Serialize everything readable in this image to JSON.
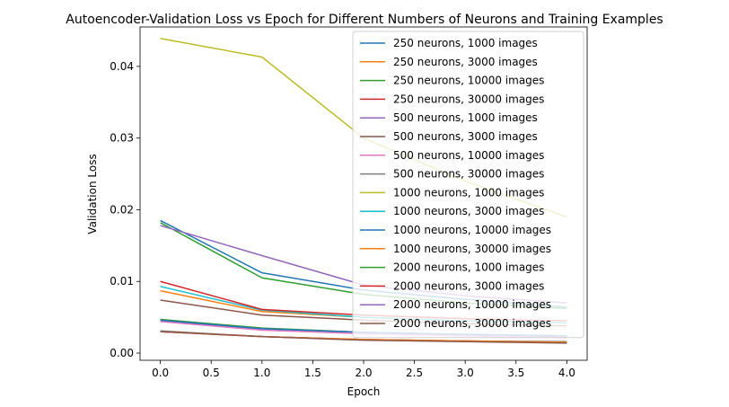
{
  "chart_data": {
    "type": "line",
    "title": "Autoencoder-Validation Loss vs Epoch for Different Numbers of Neurons and Training Examples",
    "xlabel": "Epoch",
    "ylabel": "Validation Loss",
    "xlim": [
      -0.2,
      4.2
    ],
    "ylim": [
      -0.001,
      0.0455
    ],
    "xticks": [
      0,
      0.5,
      1,
      1.5,
      2,
      2.5,
      3,
      3.5,
      4
    ],
    "xtick_labels": [
      "0.0",
      "0.5",
      "1.0",
      "1.5",
      "2.0",
      "2.5",
      "3.0",
      "3.5",
      "4.0"
    ],
    "yticks": [
      0,
      0.01,
      0.02,
      0.03,
      0.04
    ],
    "ytick_labels": [
      "0.00",
      "0.01",
      "0.02",
      "0.03",
      "0.04"
    ],
    "grid": false,
    "legend_position": "top-right",
    "x": [
      0,
      1,
      2,
      3,
      4
    ],
    "series": [
      {
        "name": "250 neurons, 1000 images",
        "color": "#1f77b4",
        "values": [
          0.0185,
          0.0112,
          0.0088,
          0.0075,
          0.0064
        ]
      },
      {
        "name": "250 neurons, 3000 images",
        "color": "#ff7f0e",
        "values": [
          0.0087,
          0.0058,
          0.005,
          0.0045,
          0.0042
        ]
      },
      {
        "name": "250 neurons, 10000 images",
        "color": "#2ca02c",
        "values": [
          0.0047,
          0.0035,
          0.0029,
          0.0026,
          0.0024
        ]
      },
      {
        "name": "250 neurons, 30000 images",
        "color": "#d62728",
        "values": [
          0.003,
          0.0023,
          0.0019,
          0.0017,
          0.0015
        ]
      },
      {
        "name": "500 neurons, 1000 images",
        "color": "#9467bd",
        "values": [
          0.0045,
          0.0034,
          0.0029,
          0.0026,
          0.0024
        ]
      },
      {
        "name": "500 neurons, 3000 images",
        "color": "#8c564b",
        "values": [
          0.0074,
          0.0053,
          0.0046,
          0.0041,
          0.0038
        ]
      },
      {
        "name": "500 neurons, 10000 images",
        "color": "#e377c2",
        "values": [
          0.0044,
          0.0032,
          0.0027,
          0.0024,
          0.0022
        ]
      },
      {
        "name": "500 neurons, 30000 images",
        "color": "#7f7f7f",
        "values": [
          0.0031,
          0.0023,
          0.0019,
          0.0017,
          0.0016
        ]
      },
      {
        "name": "1000 neurons, 1000 images",
        "color": "#bcbd22",
        "values": [
          0.0439,
          0.0413,
          0.03,
          0.024,
          0.019
        ]
      },
      {
        "name": "1000 neurons, 3000 images",
        "color": "#17becf",
        "values": [
          0.0093,
          0.006,
          0.005,
          0.0045,
          0.0042
        ]
      },
      {
        "name": "1000 neurons, 10000 images",
        "color": "#1f77b4",
        "values": [
          0.0046,
          0.0034,
          0.0029,
          0.0026,
          0.0024
        ]
      },
      {
        "name": "1000 neurons, 30000 images",
        "color": "#ff7f0e",
        "values": [
          0.003,
          0.0023,
          0.0019,
          0.0017,
          0.0015
        ]
      },
      {
        "name": "2000 neurons, 1000 images",
        "color": "#2ca02c",
        "values": [
          0.0182,
          0.0105,
          0.0082,
          0.007,
          0.0062
        ]
      },
      {
        "name": "2000 neurons, 3000 images",
        "color": "#d62728",
        "values": [
          0.01,
          0.0061,
          0.0053,
          0.0048,
          0.0045
        ]
      },
      {
        "name": "2000 neurons, 10000 images",
        "color": "#9467bd",
        "values": [
          0.0178,
          0.0136,
          0.0095,
          0.008,
          0.007
        ]
      },
      {
        "name": "2000 neurons, 30000 images",
        "color": "#8c564b",
        "values": [
          0.003,
          0.0023,
          0.0018,
          0.0016,
          0.0014
        ]
      }
    ]
  }
}
